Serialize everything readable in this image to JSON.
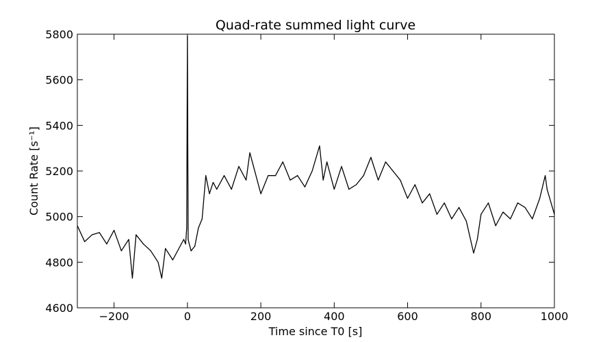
{
  "chart_data": {
    "type": "line",
    "title": "Quad-rate summed light curve",
    "xlabel": "Time since T0 [s]",
    "ylabel": "Count Rate [s⁻¹]",
    "xlim": [
      -300,
      1000
    ],
    "ylim": [
      4600,
      5800
    ],
    "xticks": [
      -200,
      0,
      200,
      400,
      600,
      800,
      1000
    ],
    "xtick_labels": [
      "−200",
      "0",
      "200",
      "400",
      "600",
      "800",
      "1000"
    ],
    "yticks": [
      4600,
      4800,
      5000,
      5200,
      5400,
      5600,
      5800
    ],
    "ytick_labels": [
      "4600",
      "4800",
      "5000",
      "5200",
      "5400",
      "5600",
      "5800"
    ],
    "grid": false,
    "line_color": "#000000",
    "series": [
      {
        "x": [
          -300,
          -280,
          -260,
          -240,
          -220,
          -200,
          -180,
          -160,
          -150,
          -140,
          -120,
          -100,
          -80,
          -70,
          -60,
          -40,
          -20,
          -10,
          -5,
          -2,
          0,
          2,
          5,
          10,
          20,
          30,
          40,
          50,
          60,
          70,
          80,
          100,
          120,
          140,
          160,
          170,
          180,
          200,
          220,
          240,
          260,
          280,
          300,
          320,
          340,
          360,
          370,
          380,
          400,
          420,
          440,
          460,
          480,
          500,
          520,
          540,
          560,
          580,
          600,
          620,
          640,
          660,
          680,
          700,
          720,
          740,
          760,
          780,
          790,
          800,
          820,
          840,
          860,
          880,
          900,
          920,
          940,
          960,
          975,
          980,
          1000
        ],
        "y": [
          4960,
          4890,
          4920,
          4930,
          4880,
          4940,
          4850,
          4900,
          4730,
          4920,
          4880,
          4850,
          4800,
          4730,
          4860,
          4810,
          4870,
          4900,
          4880,
          4950,
          5790,
          4900,
          4880,
          4850,
          4870,
          4950,
          4990,
          5180,
          5100,
          5150,
          5120,
          5180,
          5120,
          5220,
          5160,
          5280,
          5220,
          5100,
          5180,
          5180,
          5240,
          5160,
          5180,
          5130,
          5200,
          5310,
          5160,
          5240,
          5120,
          5220,
          5120,
          5140,
          5180,
          5260,
          5160,
          5240,
          5200,
          5160,
          5080,
          5140,
          5060,
          5100,
          5010,
          5060,
          4990,
          5040,
          4980,
          4840,
          4900,
          5010,
          5060,
          4960,
          5020,
          4990,
          5060,
          5040,
          4990,
          5080,
          5180,
          5120,
          5010
        ]
      }
    ]
  }
}
